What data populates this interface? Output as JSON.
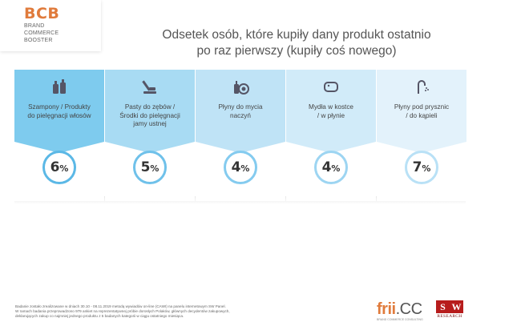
{
  "logo": {
    "main": "BCB",
    "lines": [
      "BRAND",
      "COMMERCE",
      "BOOSTER"
    ]
  },
  "title_lines": [
    "Odsetek osób, które kupiły dany produkt ostatnio",
    "po raz pierwszy (kupiły coś nowego)"
  ],
  "chart_data": {
    "type": "table",
    "unit": "%",
    "categories": [
      "Szampony / Produkty do pielęgnacji włosów",
      "Pasty do zębów / Środki do pielęgnacji jamy ustnej",
      "Płyny do mycia naczyń",
      "Mydła w kostce / w płynie",
      "Płyny pod prysznic / do kąpieli"
    ],
    "values": [
      6,
      5,
      4,
      4,
      7
    ]
  },
  "cards": [
    {
      "label_lines": [
        "Szampony / Produkty",
        "do pielęgnacji włosów"
      ],
      "value": "6",
      "unit": "%",
      "icon": "shampoo-bottles-icon",
      "head_color": "#7ecbee",
      "ring_color": "#5bb8e6"
    },
    {
      "label_lines": [
        "Pasty do zębów /",
        "Środki do pielęgnacji",
        "jamy ustnej"
      ],
      "value": "5",
      "unit": "%",
      "icon": "toothbrush-icon",
      "head_color": "#a8dbf3",
      "ring_color": "#6fc1ea"
    },
    {
      "label_lines": [
        "Płyny do mycia",
        "naczyń"
      ],
      "value": "4",
      "unit": "%",
      "icon": "dish-soap-icon",
      "head_color": "#bfe3f6",
      "ring_color": "#84cbef"
    },
    {
      "label_lines": [
        "Mydła w kostce",
        "/ w płynie"
      ],
      "value": "4",
      "unit": "%",
      "icon": "soap-bar-icon",
      "head_color": "#d1ebf9",
      "ring_color": "#9dd5f2"
    },
    {
      "label_lines": [
        "Płyny pod prysznic",
        "/ do kąpieli"
      ],
      "value": "7",
      "unit": "%",
      "icon": "shower-icon",
      "head_color": "#e3f2fb",
      "ring_color": "#b9e1f6"
    }
  ],
  "footnote_lines": [
    "Badanie zostało zrealizowane w dniach 30.10 - 08.11.2019 metodą wywiadów on-line (CAWI) na panelu internetowym SW Panel.",
    "W ramach badania przeprowadzono 979 ankiet na reprezentatywnej próbie dorosłych Polaków, głównych decydentów zakupowych,",
    "deklarujących zakup co najmniej jednego produktu z 5 badanych kategorii w ciągu ostatniego miesiąca."
  ],
  "brands": {
    "frii_main": "frii",
    "frii_cc": ".CC",
    "frii_tagline": "BRAND COMMERCE CONSULTING",
    "sw_letters": [
      "S",
      "W"
    ],
    "sw_text": "RESEARCH"
  }
}
